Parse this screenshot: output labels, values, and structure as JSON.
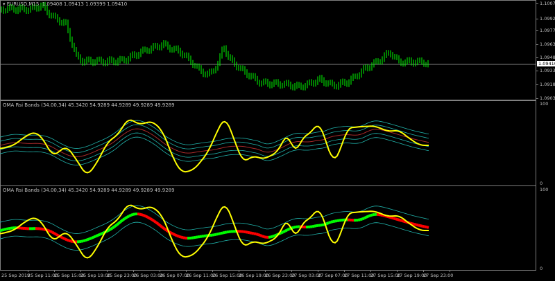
{
  "main": {
    "symbol_label": "EURUSD,M15",
    "ohlc": "1.09408 1.09413 1.09399 1.09410",
    "current_price": "1.09410",
    "price_axis": [
      "1.10075",
      "1.09925",
      "1.09775",
      "1.09630",
      "1.09480",
      "1.09330",
      "1.09180",
      "1.09030"
    ],
    "bull_color": "#00ff00"
  },
  "indicator1": {
    "label": "OMA Rsi Bands (34.00,34) 45.3420 54.9289 44.9289 49.9289 49.9289",
    "max": "100",
    "min": "0"
  },
  "indicator2": {
    "label": "OMA Rsi Bands (34.00,34) 45.3420 54.9289 44.9289 49.9289 49.9289",
    "max": "100",
    "min": "0"
  },
  "time_axis": [
    "25 Sep 2019",
    "25 Sep 11:00",
    "25 Sep 15:00",
    "25 Sep 19:00",
    "25 Sep 23:00",
    "26 Sep 03:00",
    "26 Sep 07:00",
    "26 Sep 11:00",
    "26 Sep 15:00",
    "26 Sep 19:00",
    "26 Sep 23:00",
    "27 Sep 03:00",
    "27 Sep 07:00",
    "27 Sep 11:00",
    "27 Sep 15:00",
    "27 Sep 19:00",
    "27 Sep 23:00"
  ],
  "colors": {
    "rsi": "#ffff00",
    "band": "#20b2aa",
    "mid": "#ff0000",
    "up": "#00ff00",
    "down": "#ff0000"
  }
}
